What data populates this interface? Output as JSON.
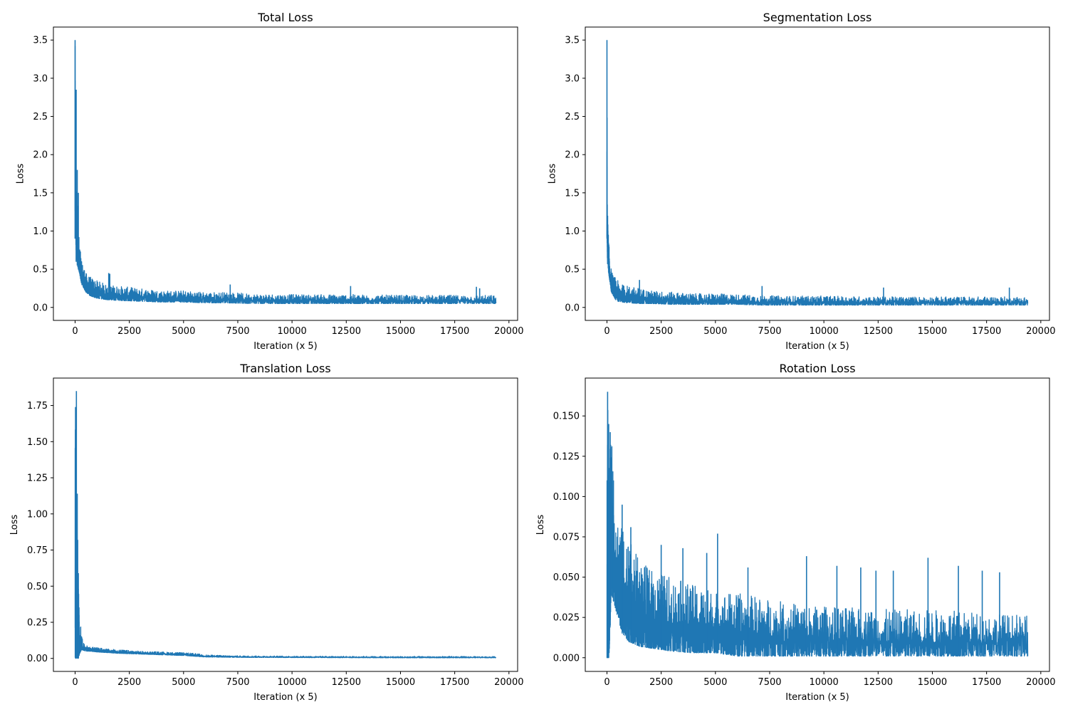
{
  "colors": {
    "series": "#1f77b4",
    "axes": "#000000",
    "background": "#ffffff"
  },
  "chart_data": [
    {
      "type": "line",
      "title": "Total Loss",
      "xlabel": "Iteration (x 5)",
      "ylabel": "Loss",
      "xlim": [
        -1000,
        20400
      ],
      "ylim": [
        -0.17,
        3.67
      ],
      "xticks": [
        0,
        2500,
        5000,
        7500,
        10000,
        12500,
        15000,
        17500,
        20000
      ],
      "xtick_labels": [
        "0",
        "2500",
        "5000",
        "7500",
        "10000",
        "12500",
        "15000",
        "17500",
        "20000"
      ],
      "yticks": [
        0.0,
        0.5,
        1.0,
        1.5,
        2.0,
        2.5,
        3.0,
        3.5
      ],
      "ytick_labels": [
        "0.0",
        "0.5",
        "1.0",
        "1.5",
        "2.0",
        "2.5",
        "3.0",
        "3.5"
      ],
      "grid": false,
      "legend": "none",
      "series": [
        {
          "x_range": [
            0,
            19400
          ],
          "envelope": {
            "x": [
              0,
              20,
              50,
              100,
              150,
              200,
              300,
              400,
              500,
              700,
              1000,
              1500,
              2000,
              3000,
              4000,
              5000,
              6000,
              7000,
              8000,
              10000,
              12500,
              15000,
              17500,
              19400
            ],
            "low": [
              0.9,
              1.0,
              0.6,
              0.55,
              0.5,
              0.45,
              0.3,
              0.25,
              0.2,
              0.15,
              0.12,
              0.1,
              0.09,
              0.08,
              0.07,
              0.07,
              0.06,
              0.06,
              0.05,
              0.05,
              0.05,
              0.05,
              0.05,
              0.05
            ],
            "high": [
              3.5,
              2.85,
              1.8,
              1.5,
              1.0,
              0.9,
              0.6,
              0.55,
              0.45,
              0.4,
              0.35,
              0.3,
              0.28,
              0.25,
              0.22,
              0.22,
              0.2,
              0.2,
              0.18,
              0.17,
              0.17,
              0.16,
              0.16,
              0.16
            ]
          },
          "spikes": [
            [
              0,
              3.5
            ],
            [
              20,
              2.85
            ],
            [
              50,
              2.85
            ],
            [
              100,
              1.8
            ],
            [
              150,
              1.5
            ],
            [
              1550,
              0.45
            ],
            [
              1600,
              0.44
            ],
            [
              7150,
              0.3
            ],
            [
              12700,
              0.28
            ],
            [
              18500,
              0.27
            ],
            [
              18650,
              0.25
            ]
          ]
        }
      ]
    },
    {
      "type": "line",
      "title": "Segmentation Loss",
      "xlabel": "Iteration (x 5)",
      "ylabel": "Loss",
      "xlim": [
        -1000,
        20400
      ],
      "ylim": [
        -0.17,
        3.67
      ],
      "xticks": [
        0,
        2500,
        5000,
        7500,
        10000,
        12500,
        15000,
        17500,
        20000
      ],
      "xtick_labels": [
        "0",
        "2500",
        "5000",
        "7500",
        "10000",
        "12500",
        "15000",
        "17500",
        "20000"
      ],
      "yticks": [
        0.0,
        0.5,
        1.0,
        1.5,
        2.0,
        2.5,
        3.0,
        3.5
      ],
      "ytick_labels": [
        "0.0",
        "0.5",
        "1.0",
        "1.5",
        "2.0",
        "2.5",
        "3.0",
        "3.5"
      ],
      "grid": false,
      "legend": "none",
      "series": [
        {
          "x_range": [
            0,
            19400
          ],
          "envelope": {
            "x": [
              0,
              20,
              50,
              100,
              150,
              200,
              300,
              400,
              500,
              700,
              1000,
              1500,
              2000,
              3000,
              4000,
              5000,
              6000,
              7000,
              8000,
              10000,
              12500,
              15000,
              17500,
              19400
            ],
            "low": [
              0.9,
              0.6,
              0.5,
              0.4,
              0.3,
              0.2,
              0.15,
              0.1,
              0.08,
              0.07,
              0.06,
              0.05,
              0.05,
              0.04,
              0.04,
              0.04,
              0.04,
              0.03,
              0.03,
              0.03,
              0.03,
              0.03,
              0.03,
              0.03
            ],
            "high": [
              3.5,
              1.2,
              1.1,
              0.8,
              0.6,
              0.5,
              0.4,
              0.4,
              0.35,
              0.3,
              0.28,
              0.25,
              0.22,
              0.2,
              0.18,
              0.18,
              0.17,
              0.16,
              0.15,
              0.15,
              0.14,
              0.14,
              0.14,
              0.14
            ]
          },
          "spikes": [
            [
              0,
              3.5
            ],
            [
              30,
              1.2
            ],
            [
              1500,
              0.36
            ],
            [
              7150,
              0.28
            ],
            [
              12750,
              0.26
            ],
            [
              18550,
              0.26
            ]
          ]
        }
      ]
    },
    {
      "type": "line",
      "title": "Translation Loss",
      "xlabel": "Iteration (x 5)",
      "ylabel": "Loss",
      "xlim": [
        -1000,
        20400
      ],
      "ylim": [
        -0.09,
        1.94
      ],
      "xticks": [
        0,
        2500,
        5000,
        7500,
        10000,
        12500,
        15000,
        17500,
        20000
      ],
      "xtick_labels": [
        "0",
        "2500",
        "5000",
        "7500",
        "10000",
        "12500",
        "15000",
        "17500",
        "20000"
      ],
      "yticks": [
        0.0,
        0.25,
        0.5,
        0.75,
        1.0,
        1.25,
        1.5,
        1.75
      ],
      "ytick_labels": [
        "0.00",
        "0.25",
        "0.50",
        "0.75",
        "1.00",
        "1.25",
        "1.50",
        "1.75"
      ],
      "grid": false,
      "legend": "none",
      "series": [
        {
          "x_range": [
            0,
            19400
          ],
          "envelope": {
            "x": [
              0,
              20,
              50,
              80,
              100,
              150,
              200,
              300,
              400,
              500,
              700,
              1000,
              1500,
              2000,
              3000,
              4000,
              5000,
              5500,
              6000,
              7000,
              8000,
              10000,
              12500,
              15000,
              17500,
              19400
            ],
            "low": [
              0.0,
              0.0,
              0.0,
              0.0,
              0.0,
              0.0,
              0.03,
              0.06,
              0.055,
              0.05,
              0.05,
              0.045,
              0.04,
              0.035,
              0.03,
              0.025,
              0.02,
              0.015,
              0.01,
              0.008,
              0.007,
              0.006,
              0.005,
              0.004,
              0.004,
              0.004
            ],
            "high": [
              1.75,
              1.85,
              1.7,
              1.15,
              0.8,
              0.6,
              0.3,
              0.17,
              0.1,
              0.09,
              0.08,
              0.075,
              0.065,
              0.06,
              0.05,
              0.045,
              0.04,
              0.035,
              0.025,
              0.02,
              0.018,
              0.016,
              0.015,
              0.014,
              0.014,
              0.013
            ]
          },
          "spikes": [
            [
              20,
              1.74
            ],
            [
              60,
              1.85
            ],
            [
              100,
              1.14
            ],
            [
              120,
              0.82
            ],
            [
              150,
              0.59
            ],
            [
              180,
              0.3
            ]
          ]
        }
      ]
    },
    {
      "type": "line",
      "title": "Rotation Loss",
      "xlabel": "Iteration (x 5)",
      "ylabel": "Loss",
      "xlim": [
        -1000,
        20400
      ],
      "ylim": [
        -0.0085,
        0.1735
      ],
      "xticks": [
        0,
        2500,
        5000,
        7500,
        10000,
        12500,
        15000,
        17500,
        20000
      ],
      "xtick_labels": [
        "0",
        "2500",
        "5000",
        "7500",
        "10000",
        "12500",
        "15000",
        "17500",
        "20000"
      ],
      "yticks": [
        0.0,
        0.025,
        0.05,
        0.075,
        0.1,
        0.125,
        0.15
      ],
      "ytick_labels": [
        "0.000",
        "0.025",
        "0.050",
        "0.075",
        "0.100",
        "0.125",
        "0.150"
      ],
      "grid": false,
      "legend": "none",
      "series": [
        {
          "x_range": [
            0,
            19400
          ],
          "envelope": {
            "x": [
              0,
              50,
              100,
              200,
              300,
              400,
              500,
              700,
              1000,
              1500,
              2000,
              3000,
              4000,
              5000,
              6000,
              7000,
              8000,
              10000,
              12500,
              15000,
              17500,
              19400
            ],
            "low": [
              0.0,
              0.0,
              0.0,
              0.04,
              0.035,
              0.03,
              0.025,
              0.015,
              0.01,
              0.007,
              0.006,
              0.004,
              0.003,
              0.003,
              0.001,
              0.001,
              0.001,
              0.001,
              0.001,
              0.001,
              0.001,
              0.001
            ],
            "high": [
              0.115,
              0.165,
              0.145,
              0.14,
              0.11,
              0.095,
              0.09,
              0.08,
              0.075,
              0.06,
              0.055,
              0.05,
              0.045,
              0.042,
              0.04,
              0.038,
              0.035,
              0.032,
              0.03,
              0.03,
              0.028,
              0.026
            ]
          },
          "spikes": [
            [
              30,
              0.165
            ],
            [
              80,
              0.145
            ],
            [
              150,
              0.14
            ],
            [
              300,
              0.11
            ],
            [
              700,
              0.095
            ],
            [
              1100,
              0.081
            ],
            [
              2500,
              0.07
            ],
            [
              3500,
              0.068
            ],
            [
              4600,
              0.065
            ],
            [
              5100,
              0.077
            ],
            [
              6500,
              0.056
            ],
            [
              9200,
              0.063
            ],
            [
              10600,
              0.057
            ],
            [
              11700,
              0.056
            ],
            [
              12400,
              0.054
            ],
            [
              13200,
              0.054
            ],
            [
              14800,
              0.062
            ],
            [
              16200,
              0.057
            ],
            [
              17300,
              0.054
            ],
            [
              18100,
              0.053
            ]
          ]
        }
      ]
    }
  ]
}
